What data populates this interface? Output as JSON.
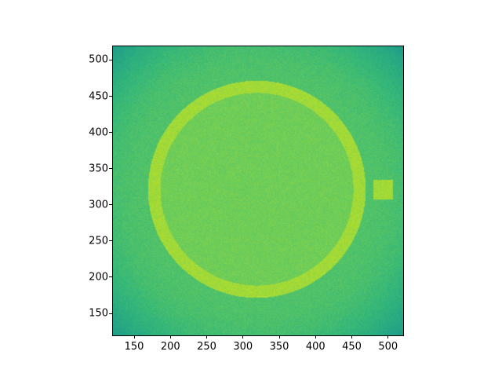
{
  "chart_data": {
    "type": "heatmap",
    "title": "",
    "xlabel": "",
    "ylabel": "",
    "colormap": "viridis",
    "xlim": [
      120,
      520
    ],
    "ylim": [
      120,
      520
    ],
    "xticks": [
      "150",
      "200",
      "250",
      "300",
      "350",
      "400",
      "450",
      "500"
    ],
    "yticks": [
      "150",
      "200",
      "250",
      "300",
      "350",
      "400",
      "450",
      "500"
    ],
    "grid": false,
    "features": {
      "background_level": 0.72,
      "corner_level": 0.55,
      "ring": {
        "center": [
          319,
          322
        ],
        "outer_radius": 150,
        "inner_radius": 133,
        "level": 0.86
      },
      "interior_level": 0.78,
      "square": {
        "x": [
          480,
          506
        ],
        "y": [
          308,
          335
        ],
        "level": 0.86
      }
    }
  }
}
